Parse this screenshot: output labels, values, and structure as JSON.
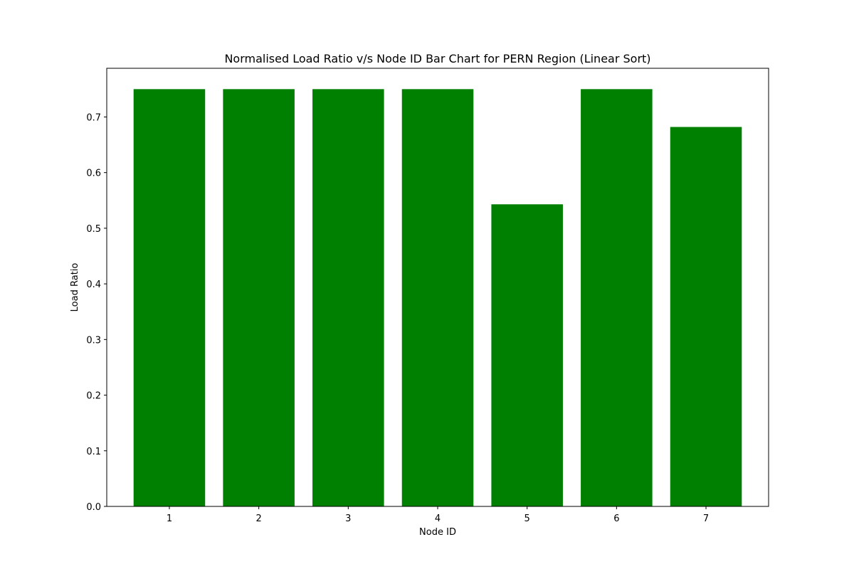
{
  "chart_data": {
    "type": "bar",
    "title": "Normalised Load Ratio v/s Node ID Bar Chart for PERN Region (Linear Sort)",
    "xlabel": "Node ID",
    "ylabel": "Load Ratio",
    "categories": [
      "1",
      "2",
      "3",
      "4",
      "5",
      "6",
      "7"
    ],
    "values": [
      0.75,
      0.75,
      0.75,
      0.75,
      0.543,
      0.75,
      0.682
    ],
    "ylim": [
      0,
      0.7875
    ],
    "yticks": [
      0.0,
      0.1,
      0.2,
      0.3,
      0.4,
      0.5,
      0.6,
      0.7
    ],
    "ytick_labels": [
      "0.0",
      "0.1",
      "0.2",
      "0.3",
      "0.4",
      "0.5",
      "0.6",
      "0.7"
    ],
    "grid": false,
    "legend": "none",
    "bar_color": "#008000"
  }
}
